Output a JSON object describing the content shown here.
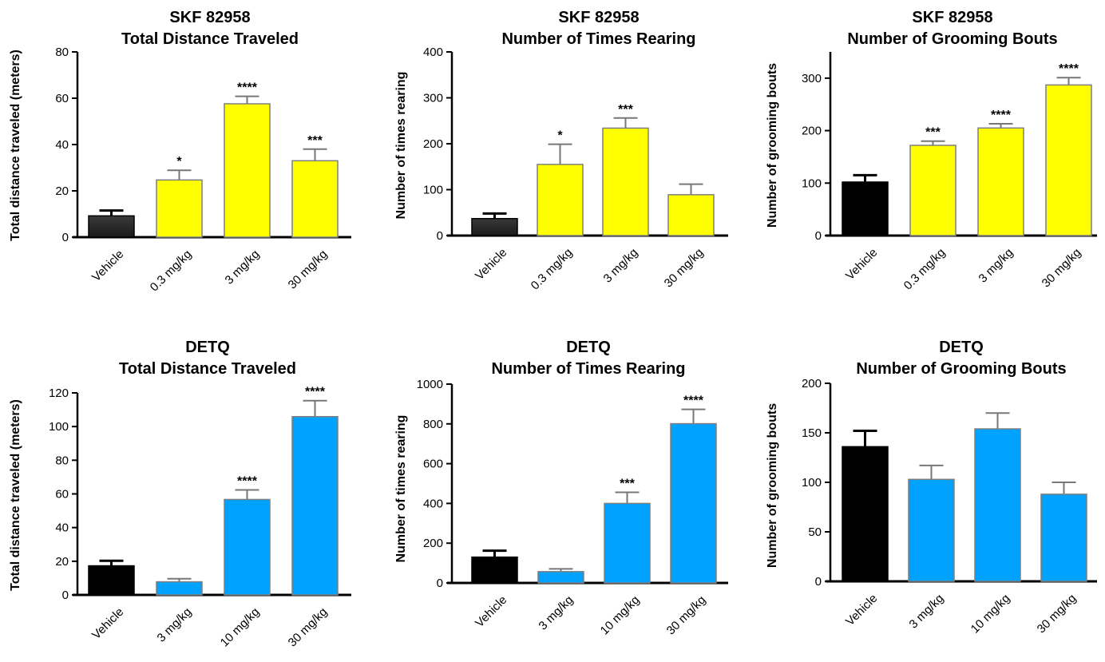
{
  "colors": {
    "vehicle_top": "#2b2b2b",
    "vehicle_bottom": "#000000",
    "skf": "#ffff00",
    "detq": "#00a2ff",
    "axis": "#000000"
  },
  "chart_data": [
    {
      "type": "bar",
      "title": "SKF 82958",
      "subtitle": "Total Distance Traveled",
      "ylabel": "Total distance traveled (meters)",
      "categories": [
        "Vehicle",
        "0.3 mg/kg",
        "3 mg/kg",
        "30 mg/kg"
      ],
      "values": [
        9.2,
        24.7,
        57.6,
        33.0
      ],
      "errors": [
        2.3,
        4.2,
        3.2,
        5.0
      ],
      "significance": [
        "",
        "*",
        "****",
        "***"
      ],
      "ylim": [
        0,
        80
      ],
      "yticks": [
        0,
        20,
        40,
        60,
        80
      ],
      "bar_colors": [
        "#2b2b2b",
        "#ffff00",
        "#ffff00",
        "#ffff00"
      ]
    },
    {
      "type": "bar",
      "title": "SKF 82958",
      "subtitle": "Number of Times Rearing",
      "ylabel": "Number of times rearing",
      "categories": [
        "Vehicle",
        "0.3 mg/kg",
        "3 mg/kg",
        "30 mg/kg"
      ],
      "values": [
        37,
        155,
        234,
        89
      ],
      "errors": [
        11,
        44,
        22,
        23
      ],
      "significance": [
        "",
        "*",
        "***",
        ""
      ],
      "ylim": [
        0,
        400
      ],
      "yticks": [
        0,
        100,
        200,
        300,
        400
      ],
      "bar_colors": [
        "#2b2b2b",
        "#ffff00",
        "#ffff00",
        "#ffff00"
      ]
    },
    {
      "type": "bar",
      "title": "SKF 82958",
      "subtitle": "Number of Grooming Bouts",
      "ylabel": "Number of grooming bouts",
      "categories": [
        "Vehicle",
        "0.3 mg/kg",
        "3 mg/kg",
        "30 mg/kg"
      ],
      "values": [
        102,
        172,
        205,
        287
      ],
      "errors": [
        13,
        8,
        8,
        14
      ],
      "significance": [
        "",
        "***",
        "****",
        "****"
      ],
      "ylim": [
        0,
        350
      ],
      "yticks": [
        0,
        100,
        200,
        300
      ],
      "bar_colors": [
        "#000000",
        "#ffff00",
        "#ffff00",
        "#ffff00"
      ]
    },
    {
      "type": "bar",
      "title": "DETQ",
      "subtitle": "Total Distance Traveled",
      "ylabel": "Total distance traveled (meters)",
      "categories": [
        "Vehicle",
        "3 mg/kg",
        "10 mg/kg",
        "30 mg/kg"
      ],
      "values": [
        17.3,
        7.8,
        56.7,
        105.9
      ],
      "errors": [
        3.0,
        1.8,
        5.7,
        9.5
      ],
      "significance": [
        "",
        "",
        "****",
        "****"
      ],
      "ylim": [
        0,
        120
      ],
      "yticks": [
        0,
        20,
        40,
        60,
        80,
        100,
        120
      ],
      "bar_colors": [
        "#000000",
        "#00a2ff",
        "#00a2ff",
        "#00a2ff"
      ]
    },
    {
      "type": "bar",
      "title": "DETQ",
      "subtitle": "Number of Times Rearing",
      "ylabel": "Number of times rearing",
      "categories": [
        "Vehicle",
        "3 mg/kg",
        "10 mg/kg",
        "30 mg/kg"
      ],
      "values": [
        130,
        57,
        400,
        801
      ],
      "errors": [
        32,
        14,
        56,
        72
      ],
      "significance": [
        "",
        "",
        "***",
        "****"
      ],
      "ylim": [
        0,
        1000
      ],
      "yticks": [
        0,
        200,
        400,
        600,
        800,
        1000
      ],
      "bar_colors": [
        "#000000",
        "#00a2ff",
        "#00a2ff",
        "#00a2ff"
      ]
    },
    {
      "type": "bar",
      "title": "DETQ",
      "subtitle": "Number of Grooming Bouts",
      "ylabel": "Number of grooming bouts",
      "categories": [
        "Vehicle",
        "3 mg/kg",
        "10 mg/kg",
        "30 mg/kg"
      ],
      "values": [
        136,
        103,
        154,
        88
      ],
      "errors": [
        16,
        14,
        16,
        12
      ],
      "significance": [
        "",
        "",
        "",
        ""
      ],
      "ylim": [
        0,
        200
      ],
      "yticks": [
        0,
        50,
        100,
        150,
        200
      ],
      "bar_colors": [
        "#000000",
        "#00a2ff",
        "#00a2ff",
        "#00a2ff"
      ]
    }
  ]
}
